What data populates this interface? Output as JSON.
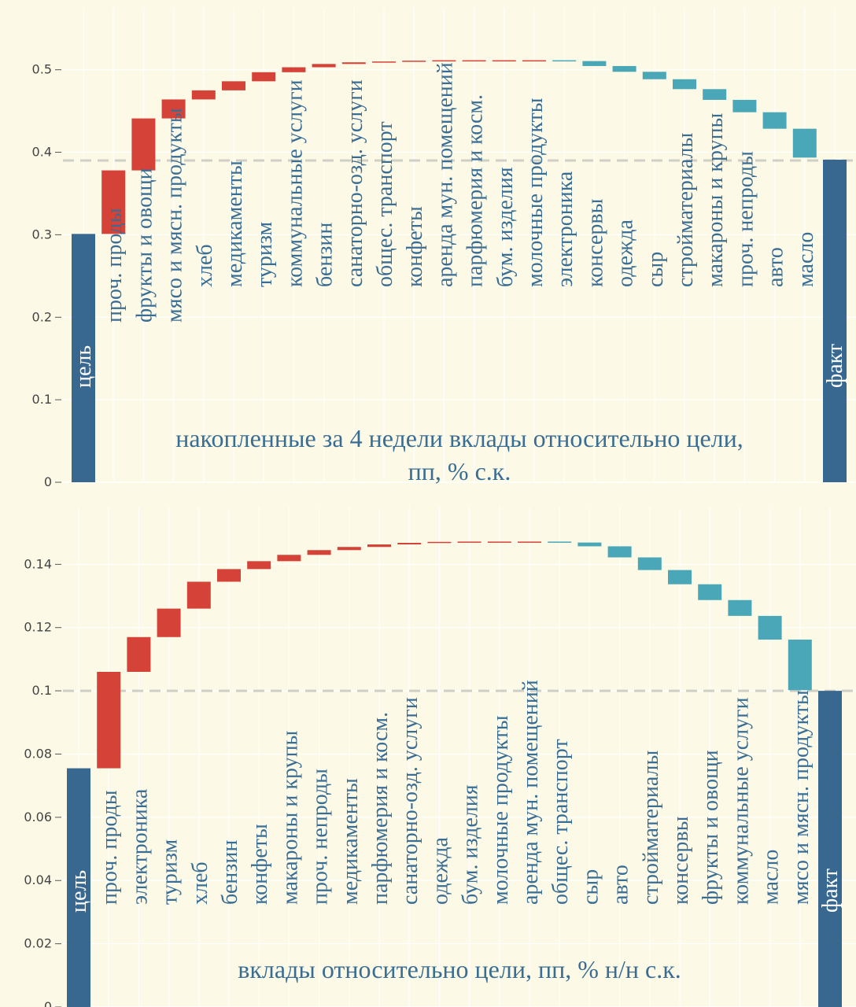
{
  "colors": {
    "background": "#fcfae6",
    "total": "#386890",
    "increase": "#d54238",
    "decrease": "#4aa7b7",
    "label_on_bar": "#ffffff",
    "label_off_bar": "#3a6d93",
    "reference_line": "#d0cfc6"
  },
  "chart_data": [
    {
      "type": "waterfall",
      "title": "накопленные за 4 недели вклады относительно цели, пп, % с.к.",
      "title_lines": [
        "накопленные за 4 недели вклады относительно цели,",
        "пп, % с.к."
      ],
      "y_ticks": [
        0,
        0.1,
        0.2,
        0.3,
        0.4,
        0.5
      ],
      "y_tick_labels": [
        "0",
        "0.1",
        "0.2",
        "0.3",
        "0.4",
        "0.5"
      ],
      "ylim": [
        0,
        0.575
      ],
      "reference_value": 0.39,
      "categories": [
        "цель",
        "проч. проды",
        "фрукты и овощи",
        "мясо и мясн. продукты",
        "хлеб",
        "медикаменты",
        "туризм",
        "коммунальные услуги",
        "бензин",
        "санаторно-озд. услуги",
        "общес. транспорт",
        "конфеты",
        "аренда мун. помещений",
        "парфюмерия и косм.",
        "бум. изделия",
        "молочные продукты",
        "электроника",
        "консервы",
        "одежда",
        "сыр",
        "стройматериалы",
        "макароны и крупы",
        "проч. непроды",
        "авто",
        "масло",
        "факт"
      ],
      "values": [
        0.301,
        0.077,
        0.063,
        0.023,
        0.011,
        0.011,
        0.011,
        0.006,
        0.004,
        0.002,
        0.001,
        0.001,
        0.0005,
        0.0,
        0.0,
        0.0,
        -0.001,
        -0.006,
        -0.007,
        -0.009,
        -0.012,
        -0.013,
        -0.015,
        -0.02,
        -0.035,
        0.391
      ],
      "kinds": [
        "total",
        "inc",
        "inc",
        "inc",
        "inc",
        "inc",
        "inc",
        "inc",
        "inc",
        "inc",
        "inc",
        "inc",
        "inc",
        "inc",
        "inc",
        "inc",
        "dec",
        "dec",
        "dec",
        "dec",
        "dec",
        "dec",
        "dec",
        "dec",
        "dec",
        "total"
      ]
    },
    {
      "type": "waterfall",
      "title": "вклады относительно цели, пп, % н/н с.к.",
      "title_lines": [
        "вклады относительно цели, пп, % н/н с.к."
      ],
      "y_ticks": [
        0,
        0.02,
        0.04,
        0.06,
        0.08,
        0.1,
        0.12,
        0.14
      ],
      "y_tick_labels": [
        "0",
        "0.02",
        "0.04",
        "0.06",
        "0.08",
        "0.1",
        "0.12",
        "0.14"
      ],
      "ylim": [
        0,
        0.158
      ],
      "reference_value": 0.1,
      "categories": [
        "цель",
        "проч. проды",
        "электроника",
        "туризм",
        "хлеб",
        "бензин",
        "конфеты",
        "макароны и крупы",
        "проч. непроды",
        "медикаменты",
        "парфюмерия и косм.",
        "санаторно-озд. услуги",
        "одежда",
        "бум. изделия",
        "молочные продукты",
        "аренда мун. помещений",
        "общес. транспорт",
        "сыр",
        "авто",
        "стройматериалы",
        "консервы",
        "фрукты и овощи",
        "коммунальные услуги",
        "масло",
        "мясо и мясн. продукты",
        "факт"
      ],
      "values": [
        0.0755,
        0.0305,
        0.011,
        0.009,
        0.0085,
        0.004,
        0.0025,
        0.002,
        0.0015,
        0.001,
        0.0008,
        0.0005,
        0.0003,
        0.0001,
        0.0,
        0.0,
        -0.0003,
        -0.0012,
        -0.0035,
        -0.004,
        -0.0045,
        -0.005,
        -0.005,
        -0.0075,
        -0.016,
        0.1
      ],
      "kinds": [
        "total",
        "inc",
        "inc",
        "inc",
        "inc",
        "inc",
        "inc",
        "inc",
        "inc",
        "inc",
        "inc",
        "inc",
        "inc",
        "inc",
        "inc",
        "inc",
        "dec",
        "dec",
        "dec",
        "dec",
        "dec",
        "dec",
        "dec",
        "dec",
        "dec",
        "total"
      ]
    }
  ]
}
